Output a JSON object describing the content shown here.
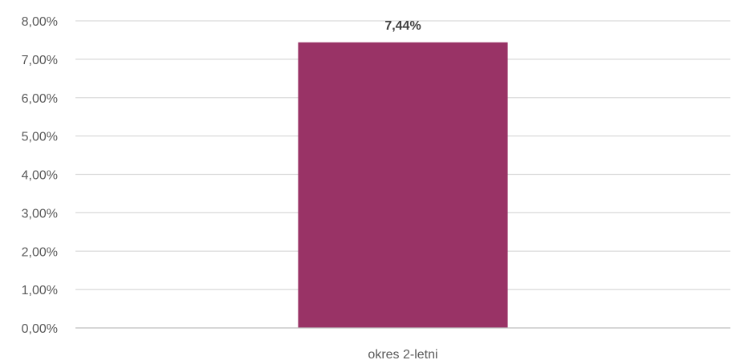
{
  "chart_data": {
    "type": "bar",
    "title": "",
    "xlabel": "",
    "ylabel": "",
    "categories": [
      "okres 2-letni"
    ],
    "values": [
      7.44
    ],
    "data_labels": [
      "7,44%"
    ],
    "ylim": [
      0,
      8
    ],
    "y_ticks": [
      0,
      1,
      2,
      3,
      4,
      5,
      6,
      7,
      8
    ],
    "y_tick_labels": [
      "0,00%",
      "1,00%",
      "2,00%",
      "3,00%",
      "4,00%",
      "5,00%",
      "6,00%",
      "7,00%",
      "8,00%"
    ],
    "grid": true,
    "legend": "none",
    "colors": {
      "bar": "#993366",
      "grid": "#d9d9d9",
      "axis": "#bfbfbf",
      "text": "#595959"
    }
  }
}
